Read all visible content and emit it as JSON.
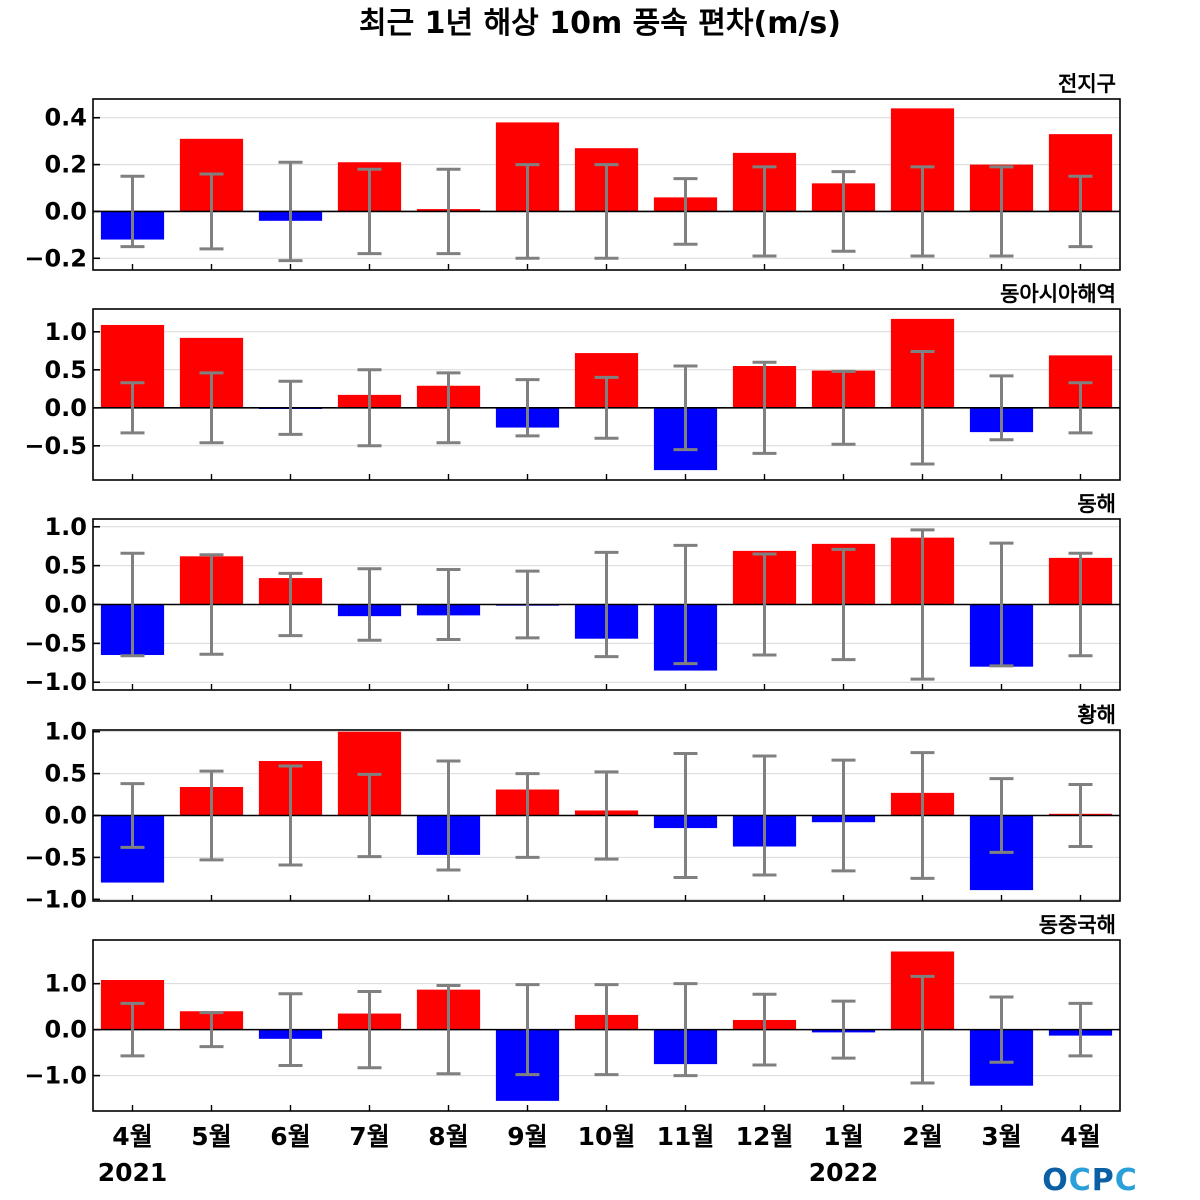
{
  "title": "최근 1년 해상 10m 풍속 편차(m/s)",
  "logo": {
    "text": "OCPC",
    "colors": [
      "#0b5fa5",
      "#2a9fd8"
    ]
  },
  "colors": {
    "positive": "#ff0000",
    "negative": "#0000ff",
    "error_bar": "#808080",
    "grid": "#d9d9d9"
  },
  "year_labels": [
    {
      "text": "2021",
      "category_index": 0
    },
    {
      "text": "2022",
      "category_index": 9
    }
  ],
  "chart_data": [
    {
      "type": "bar",
      "name": "전지구",
      "categories": [
        "4월",
        "5월",
        "6월",
        "7월",
        "8월",
        "9월",
        "10월",
        "11월",
        "12월",
        "1월",
        "2월",
        "3월",
        "4월"
      ],
      "values": [
        -0.12,
        0.31,
        -0.04,
        0.21,
        0.01,
        0.38,
        0.27,
        0.06,
        0.25,
        0.12,
        0.44,
        0.2,
        0.33
      ],
      "error": [
        0.15,
        0.16,
        0.21,
        0.18,
        0.18,
        0.2,
        0.2,
        0.14,
        0.19,
        0.17,
        0.19,
        0.19,
        0.15
      ],
      "ylim": [
        -0.25,
        0.48
      ],
      "yticks": [
        -0.2,
        0.0,
        0.2,
        0.4
      ],
      "ytick_labels": [
        "−0.2",
        "0.0",
        "0.2",
        "0.4"
      ],
      "grid": true
    },
    {
      "type": "bar",
      "name": "동아시아해역",
      "categories": [
        "4월",
        "5월",
        "6월",
        "7월",
        "8월",
        "9월",
        "10월",
        "11월",
        "12월",
        "1월",
        "2월",
        "3월",
        "4월"
      ],
      "values": [
        1.09,
        0.92,
        -0.01,
        0.17,
        0.29,
        -0.26,
        0.72,
        -0.82,
        0.55,
        0.49,
        1.17,
        -0.32,
        0.69
      ],
      "error": [
        0.33,
        0.46,
        0.35,
        0.5,
        0.46,
        0.37,
        0.4,
        0.55,
        0.6,
        0.48,
        0.74,
        0.42,
        0.33
      ],
      "ylim": [
        -0.95,
        1.3
      ],
      "yticks": [
        -0.5,
        0.0,
        0.5,
        1.0
      ],
      "ytick_labels": [
        "−0.5",
        "0.0",
        "0.5",
        "1.0"
      ],
      "grid": true
    },
    {
      "type": "bar",
      "name": "동해",
      "categories": [
        "4월",
        "5월",
        "6월",
        "7월",
        "8월",
        "9월",
        "10월",
        "11월",
        "12월",
        "1월",
        "2월",
        "3월",
        "4월"
      ],
      "values": [
        -0.65,
        0.62,
        0.34,
        -0.15,
        -0.14,
        -0.01,
        -0.44,
        -0.85,
        0.69,
        0.78,
        0.86,
        -0.8,
        0.6
      ],
      "error": [
        0.66,
        0.64,
        0.4,
        0.46,
        0.45,
        0.43,
        0.67,
        0.76,
        0.65,
        0.71,
        0.96,
        0.79,
        0.66
      ],
      "ylim": [
        -1.1,
        1.1
      ],
      "yticks": [
        -1.0,
        -0.5,
        0.0,
        0.5,
        1.0
      ],
      "ytick_labels": [
        "−1.0",
        "−0.5",
        "0.0",
        "0.5",
        "1.0"
      ],
      "grid": true
    },
    {
      "type": "bar",
      "name": "황해",
      "categories": [
        "4월",
        "5월",
        "6월",
        "7월",
        "8월",
        "9월",
        "10월",
        "11월",
        "12월",
        "1월",
        "2월",
        "3월",
        "4월"
      ],
      "values": [
        -0.8,
        0.34,
        0.65,
        1.0,
        -0.47,
        0.31,
        0.06,
        -0.15,
        -0.37,
        -0.08,
        0.27,
        -0.89,
        0.02
      ],
      "error": [
        0.38,
        0.53,
        0.59,
        0.49,
        0.65,
        0.5,
        0.52,
        0.74,
        0.71,
        0.66,
        0.75,
        0.44,
        0.37
      ],
      "ylim": [
        -1.02,
        1.02
      ],
      "yticks": [
        -1.0,
        -0.5,
        0.0,
        0.5,
        1.0
      ],
      "ytick_labels": [
        "−1.0",
        "−0.5",
        "0.0",
        "0.5",
        "1.0"
      ],
      "grid": true
    },
    {
      "type": "bar",
      "name": "동중국해",
      "categories": [
        "4월",
        "5월",
        "6월",
        "7월",
        "8월",
        "9월",
        "10월",
        "11월",
        "12월",
        "1월",
        "2월",
        "3월",
        "4월"
      ],
      "values": [
        1.08,
        0.4,
        -0.2,
        0.35,
        0.87,
        -1.55,
        0.32,
        -0.75,
        0.21,
        -0.06,
        1.7,
        -1.22,
        -0.13
      ],
      "error": [
        0.57,
        0.37,
        0.78,
        0.83,
        0.96,
        0.98,
        0.98,
        1.0,
        0.77,
        0.62,
        1.16,
        0.71,
        0.57
      ],
      "ylim": [
        -1.77,
        1.95
      ],
      "yticks": [
        -1.0,
        0.0,
        1.0
      ],
      "ytick_labels": [
        "−1.0",
        "0.0",
        "1.0"
      ],
      "grid": true
    }
  ]
}
